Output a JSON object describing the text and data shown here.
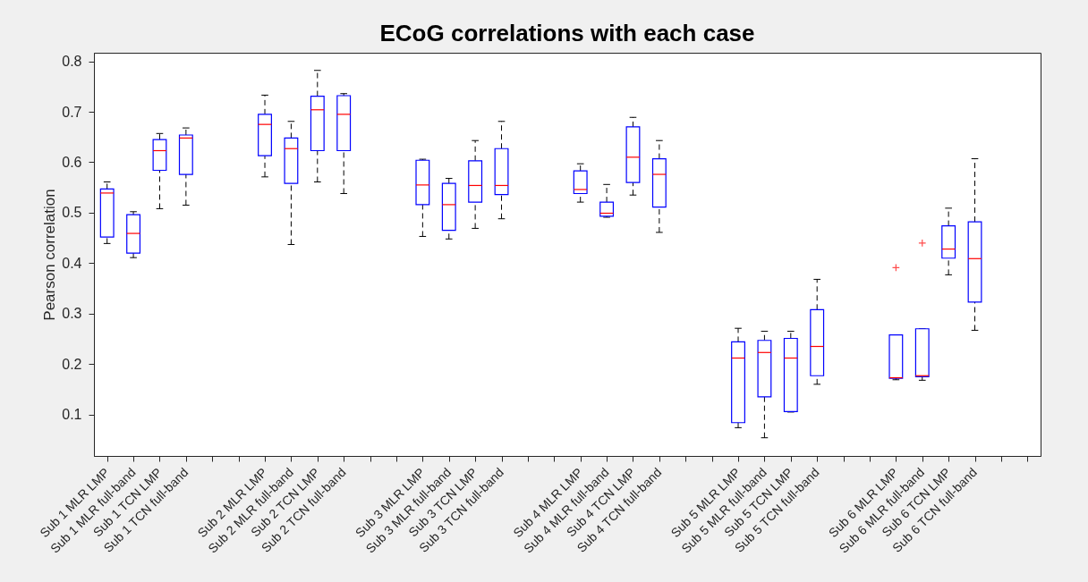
{
  "chart_data": {
    "type": "box",
    "title": "ECoG correlations with each case",
    "ylabel": "Pearson correlation",
    "categories": [
      "Sub 1 MLR LMP",
      "Sub 1 MLR full-band",
      "Sub 1 TCN LMP",
      "Sub 1 TCN full-band",
      null,
      null,
      "Sub 2 MLR LMP",
      "Sub 2 MLR full-band",
      "Sub 2 TCN LMP",
      "Sub 2 TCN full-band",
      null,
      null,
      "Sub 3 MLR LMP",
      "Sub 3 MLR full-band",
      "Sub 3 TCN LMP",
      "Sub 3 TCN full-band",
      null,
      null,
      "Sub 4 MLR LMP",
      "Sub 4 MLR full-band",
      "Sub 4 TCN LMP",
      "Sub 4 TCN full-band",
      null,
      null,
      "Sub 5 MLR LMP",
      "Sub 5 MLR full-band",
      "Sub 5 TCN LMP",
      "Sub 5 TCN full-band",
      null,
      null,
      "Sub 6 MLR LMP",
      "Sub 6 MLR full-band",
      "Sub 6 TCN LMP",
      "Sub 6 TCN full-band",
      null,
      null
    ],
    "boxes": [
      {
        "low": 0.439,
        "q1": 0.452,
        "median": 0.539,
        "q3": 0.547,
        "high": 0.561
      },
      {
        "low": 0.411,
        "q1": 0.42,
        "median": 0.459,
        "q3": 0.496,
        "high": 0.502
      },
      {
        "low": 0.508,
        "q1": 0.584,
        "median": 0.623,
        "q3": 0.645,
        "high": 0.657
      },
      {
        "low": 0.515,
        "q1": 0.576,
        "median": 0.648,
        "q3": 0.654,
        "high": 0.668
      },
      null,
      null,
      {
        "low": 0.571,
        "q1": 0.613,
        "median": 0.675,
        "q3": 0.695,
        "high": 0.733
      },
      {
        "low": 0.437,
        "q1": 0.558,
        "median": 0.627,
        "q3": 0.648,
        "high": 0.681
      },
      {
        "low": 0.561,
        "q1": 0.623,
        "median": 0.704,
        "q3": 0.731,
        "high": 0.782
      },
      {
        "low": 0.538,
        "q1": 0.623,
        "median": 0.695,
        "q3": 0.732,
        "high": 0.736
      },
      null,
      null,
      {
        "low": 0.453,
        "q1": 0.516,
        "median": 0.555,
        "q3": 0.604,
        "high": 0.606
      },
      {
        "low": 0.448,
        "q1": 0.465,
        "median": 0.516,
        "q3": 0.558,
        "high": 0.568
      },
      {
        "low": 0.469,
        "q1": 0.521,
        "median": 0.554,
        "q3": 0.603,
        "high": 0.643
      },
      {
        "low": 0.488,
        "q1": 0.536,
        "median": 0.554,
        "q3": 0.627,
        "high": 0.681
      },
      null,
      null,
      {
        "low": 0.521,
        "q1": 0.538,
        "median": 0.546,
        "q3": 0.583,
        "high": 0.597
      },
      {
        "low": 0.491,
        "q1": 0.493,
        "median": 0.499,
        "q3": 0.521,
        "high": 0.556
      },
      {
        "low": 0.535,
        "q1": 0.56,
        "median": 0.61,
        "q3": 0.67,
        "high": 0.689
      },
      {
        "low": 0.461,
        "q1": 0.511,
        "median": 0.576,
        "q3": 0.607,
        "high": 0.643
      },
      null,
      null,
      {
        "low": 0.074,
        "q1": 0.084,
        "median": 0.212,
        "q3": 0.244,
        "high": 0.271
      },
      {
        "low": 0.054,
        "q1": 0.135,
        "median": 0.223,
        "q3": 0.247,
        "high": 0.265
      },
      {
        "low": 0.105,
        "q1": 0.106,
        "median": 0.212,
        "q3": 0.251,
        "high": 0.265
      },
      {
        "low": 0.16,
        "q1": 0.177,
        "median": 0.235,
        "q3": 0.308,
        "high": 0.368
      },
      null,
      null,
      {
        "low": 0.169,
        "q1": 0.172,
        "median": 0.173,
        "q3": 0.258,
        "high": 0.258,
        "outliers": [
          0.391
        ]
      },
      {
        "low": 0.168,
        "q1": 0.175,
        "median": 0.177,
        "q3": 0.27,
        "high": 0.27,
        "outliers": [
          0.44
        ]
      },
      {
        "low": 0.377,
        "q1": 0.41,
        "median": 0.428,
        "q3": 0.474,
        "high": 0.509
      },
      {
        "low": 0.267,
        "q1": 0.323,
        "median": 0.409,
        "q3": 0.482,
        "high": 0.607
      },
      null,
      null
    ],
    "ylim": [
      0.018,
      0.817
    ],
    "yticks": [
      0.1,
      0.2,
      0.3,
      0.4,
      0.5,
      0.6,
      0.7,
      0.8
    ],
    "grid": false
  }
}
